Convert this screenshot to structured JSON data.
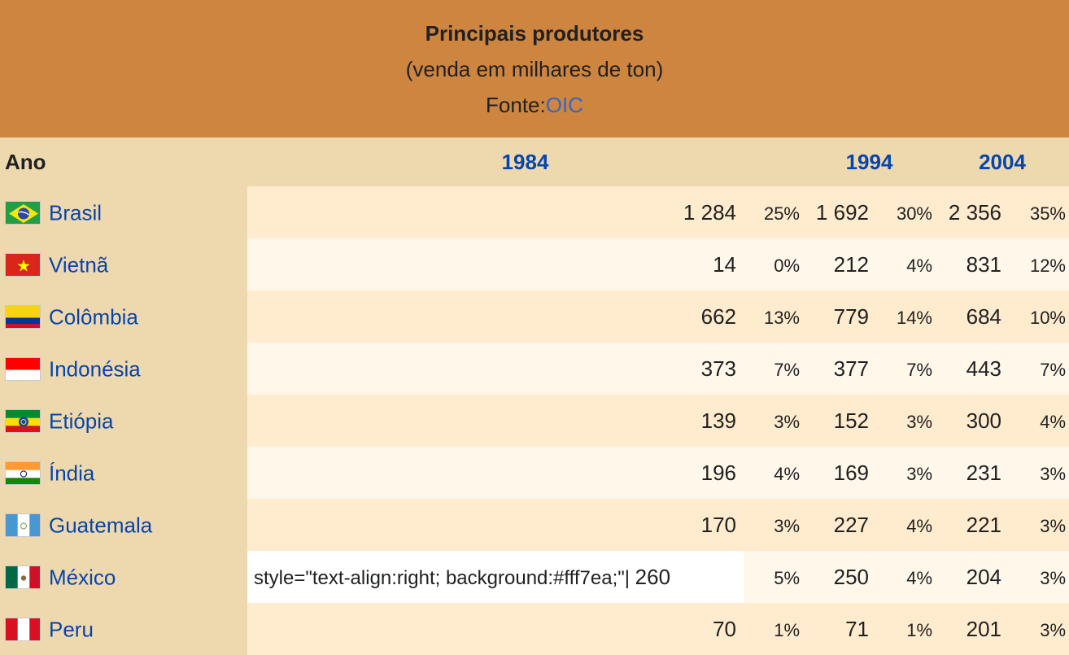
{
  "caption": {
    "title": "Principais produtores",
    "subtitle": "(venda em milhares de ton)",
    "source_prefix": "Fonte:",
    "source_link": "OIC"
  },
  "header": {
    "ano": "Ano",
    "years": [
      "1984",
      "1994",
      "2004"
    ]
  },
  "rows": [
    {
      "country": "Brasil",
      "flag_icon": "brazil-flag-icon",
      "v1984": "1 284",
      "p1984": "25%",
      "v1994": "1 692",
      "p1994": "30%",
      "v2004": "2 356",
      "p2004": "35%"
    },
    {
      "country": "Vietnã",
      "flag_icon": "vietnam-flag-icon",
      "v1984": "14",
      "p1984": "0%",
      "v1994": "212",
      "p1994": "4%",
      "v2004": "831",
      "p2004": "12%"
    },
    {
      "country": "Colômbia",
      "flag_icon": "colombia-flag-icon",
      "v1984": "662",
      "p1984": "13%",
      "v1994": "779",
      "p1994": "14%",
      "v2004": "684",
      "p2004": "10%"
    },
    {
      "country": "Indonésia",
      "flag_icon": "indonesia-flag-icon",
      "v1984": "373",
      "p1984": "7%",
      "v1994": "377",
      "p1994": "7%",
      "v2004": "443",
      "p2004": "7%"
    },
    {
      "country": "Etiópia",
      "flag_icon": "ethiopia-flag-icon",
      "v1984": "139",
      "p1984": "3%",
      "v1994": "152",
      "p1994": "3%",
      "v2004": "300",
      "p2004": "4%"
    },
    {
      "country": "Índia",
      "flag_icon": "india-flag-icon",
      "v1984": "196",
      "p1984": "4%",
      "v1994": "169",
      "p1994": "3%",
      "v2004": "231",
      "p2004": "3%"
    },
    {
      "country": "Guatemala",
      "flag_icon": "guatemala-flag-icon",
      "v1984": "170",
      "p1984": "3%",
      "v1994": "227",
      "p1994": "4%",
      "v2004": "221",
      "p2004": "3%"
    },
    {
      "country": "México",
      "flag_icon": "mexico-flag-icon",
      "v1984_prefix": "style=\"text-align:right; background:#fff7ea;\"|",
      "v1984": "260",
      "p1984": "5%",
      "v1994": "250",
      "p1994": "4%",
      "v2004": "204",
      "p2004": "3%"
    },
    {
      "country": "Peru",
      "flag_icon": "peru-flag-icon",
      "v1984": "70",
      "p1984": "1%",
      "v1994": "71",
      "p1994": "1%",
      "v2004": "201",
      "p2004": "3%"
    }
  ],
  "colors": {
    "caption_bg": "#cd853f",
    "label_bg": "#eed9af",
    "row_odd_bg": "#ffebcd",
    "row_even_bg": "#fff7ea",
    "link": "#0645ad"
  }
}
